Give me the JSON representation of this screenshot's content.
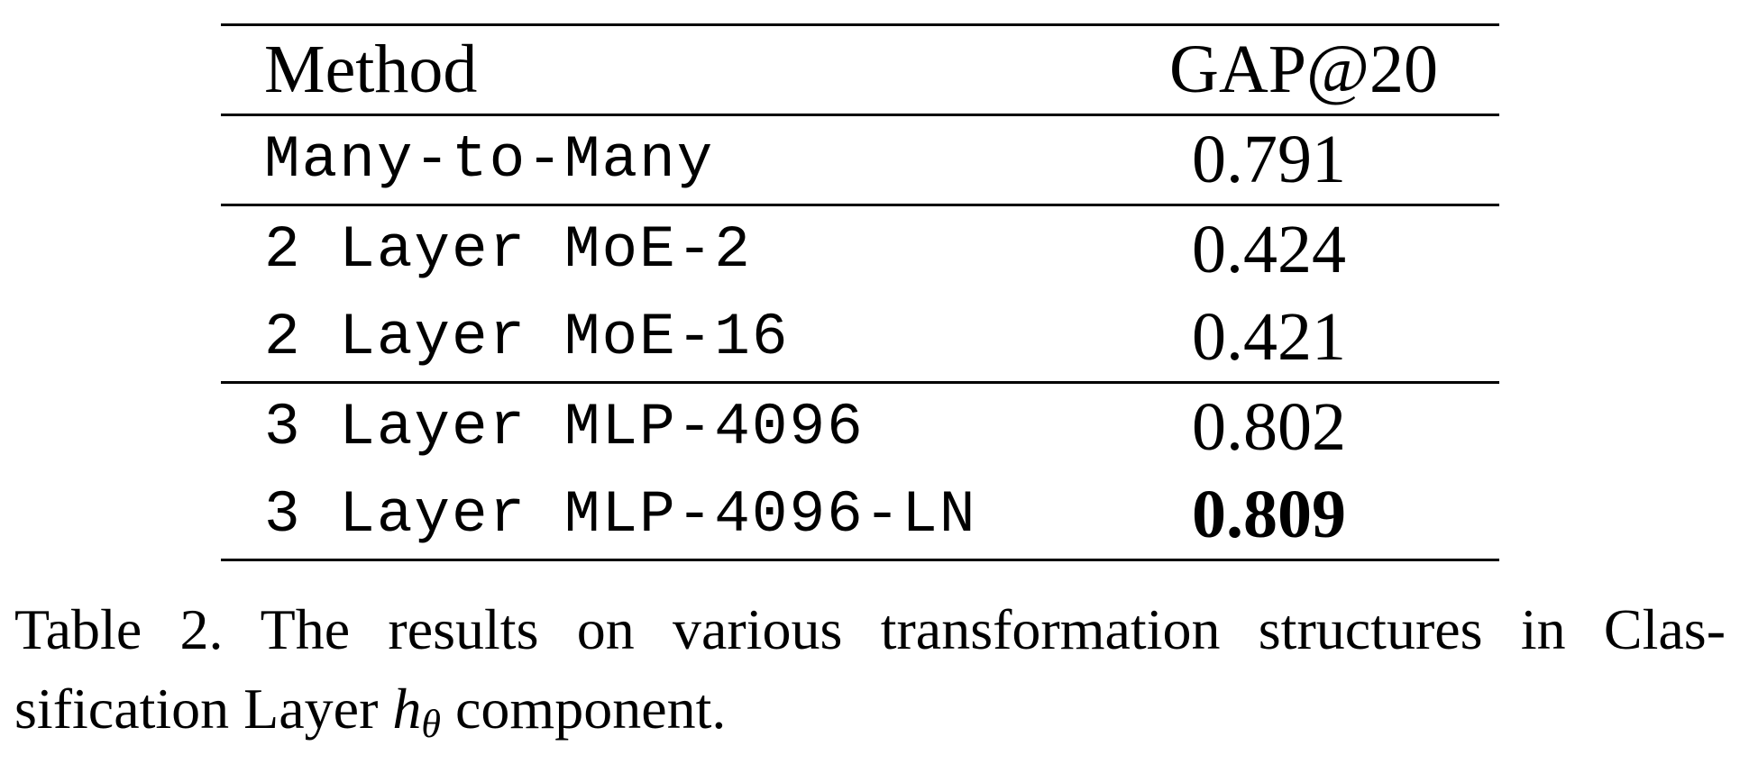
{
  "table": {
    "headers": {
      "method": "Method",
      "metric": "GAP@20"
    },
    "groups": [
      {
        "rows": [
          {
            "method": "Many-to-Many",
            "value": "0.791",
            "bold": false
          }
        ]
      },
      {
        "rows": [
          {
            "method": "2 Layer MoE-2",
            "value": "0.424",
            "bold": false
          },
          {
            "method": "2 Layer MoE-16",
            "value": "0.421",
            "bold": false
          }
        ]
      },
      {
        "rows": [
          {
            "method": "3 Layer MLP-4096",
            "value": "0.802",
            "bold": false
          },
          {
            "method": "3 Layer MLP-4096-LN",
            "value": "0.809",
            "bold": true
          }
        ]
      }
    ]
  },
  "caption": {
    "line1": "Table 2. The results on various transformation structures in Clas-",
    "line2_prefix": "sification Layer ",
    "math_symbol": "h",
    "math_subscript": "θ",
    "line2_suffix": " component."
  }
}
